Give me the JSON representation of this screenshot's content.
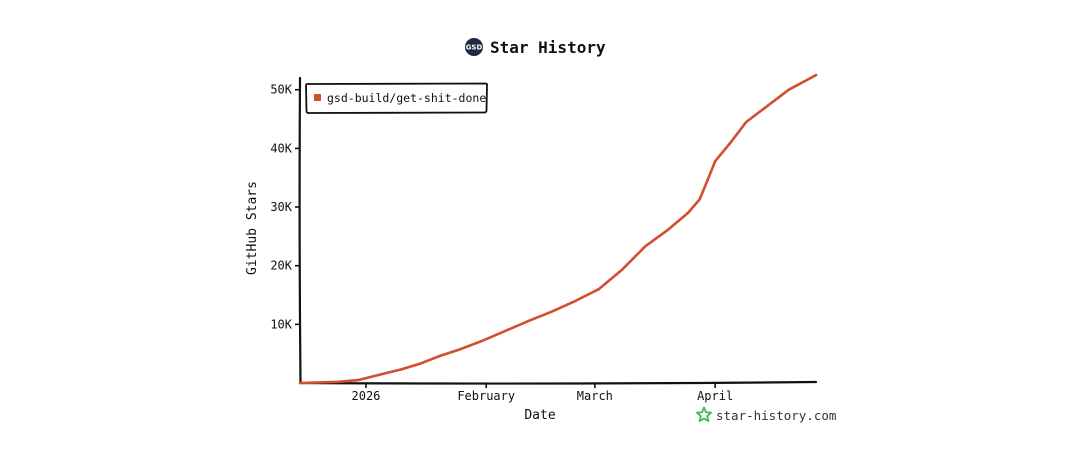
{
  "chart_data": {
    "type": "line",
    "title": "Star History",
    "logo_text": "GSD",
    "xlabel": "Date",
    "ylabel": "GitHub Stars",
    "x_ticks": [
      "2026",
      "February",
      "March",
      "April"
    ],
    "y_ticks": [
      "10K",
      "20K",
      "30K",
      "40K",
      "50K"
    ],
    "ylim": [
      0,
      52000
    ],
    "legend": "top-left",
    "grid": false,
    "series": [
      {
        "name": "gsd-build/get-shit-done",
        "color": "#d14e2f",
        "points": [
          [
            "2025-12-15",
            0
          ],
          [
            "2025-12-20",
            100
          ],
          [
            "2025-12-25",
            200
          ],
          [
            "2025-12-30",
            500
          ],
          [
            "2026-01-05",
            1500
          ],
          [
            "2026-01-10",
            2300
          ],
          [
            "2026-01-15",
            3300
          ],
          [
            "2026-01-20",
            4600
          ],
          [
            "2026-01-25",
            5700
          ],
          [
            "2026-01-31",
            7200
          ],
          [
            "2026-02-06",
            8900
          ],
          [
            "2026-02-12",
            10600
          ],
          [
            "2026-02-18",
            12200
          ],
          [
            "2026-02-24",
            14000
          ],
          [
            "2026-03-02",
            16000
          ],
          [
            "2026-03-08",
            19300
          ],
          [
            "2026-03-14",
            23300
          ],
          [
            "2026-03-20",
            26200
          ],
          [
            "2026-03-25",
            29000
          ],
          [
            "2026-03-28",
            31300
          ],
          [
            "2026-03-30",
            34500
          ],
          [
            "2026-04-01",
            37800
          ],
          [
            "2026-04-05",
            41000
          ],
          [
            "2026-04-09",
            44500
          ],
          [
            "2026-04-14",
            47000
          ],
          [
            "2026-04-20",
            50000
          ],
          [
            "2026-04-27",
            52500
          ]
        ]
      }
    ]
  },
  "watermark": {
    "text": "star-history.com",
    "icon": "star-icon",
    "icon_color": "#3fbf4a"
  }
}
